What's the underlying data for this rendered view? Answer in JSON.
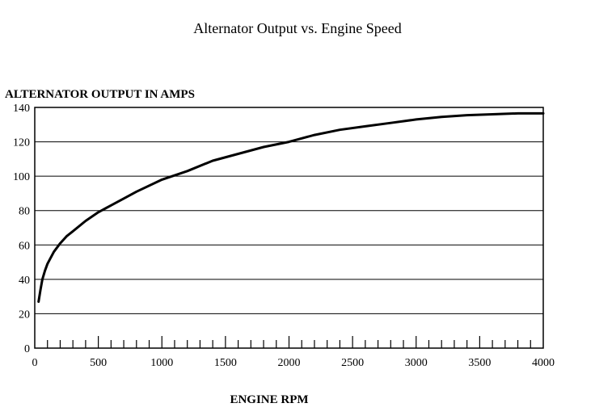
{
  "chart_data": {
    "type": "line",
    "title": "Alternator Output vs. Engine Speed",
    "ylabel": "ALTERNATOR OUTPUT IN AMPS",
    "xlabel": "ENGINE RPM",
    "xlim": [
      0,
      4000
    ],
    "ylim": [
      0,
      140
    ],
    "x_ticks": [
      0,
      500,
      1000,
      1500,
      2000,
      2500,
      3000,
      3500,
      4000
    ],
    "x_tick_labels": [
      "0",
      "500",
      "1000",
      "1500",
      "2000",
      "2500",
      "3000",
      "3500",
      "4000"
    ],
    "y_ticks": [
      0,
      20,
      40,
      60,
      80,
      100,
      120,
      140
    ],
    "y_tick_labels": [
      "0",
      "20",
      "40",
      "60",
      "80",
      "100",
      "120",
      "140"
    ],
    "grid": "horizontal",
    "series": [
      {
        "x": [
          30,
          45,
          60,
          80,
          100,
          150,
          200,
          250,
          300,
          400,
          500,
          600,
          700,
          800,
          1000,
          1200,
          1400,
          1600,
          1800,
          2000,
          2200,
          2400,
          2600,
          2800,
          3000,
          3200,
          3400,
          3600,
          3800,
          4000
        ],
        "y": [
          27,
          34,
          40,
          45,
          49,
          56,
          61,
          65,
          68,
          74,
          79,
          83,
          87,
          91,
          98,
          103,
          109,
          113,
          117,
          120,
          124,
          127,
          129,
          131,
          133,
          134.5,
          135.5,
          136,
          136.5,
          136.5
        ]
      }
    ]
  }
}
